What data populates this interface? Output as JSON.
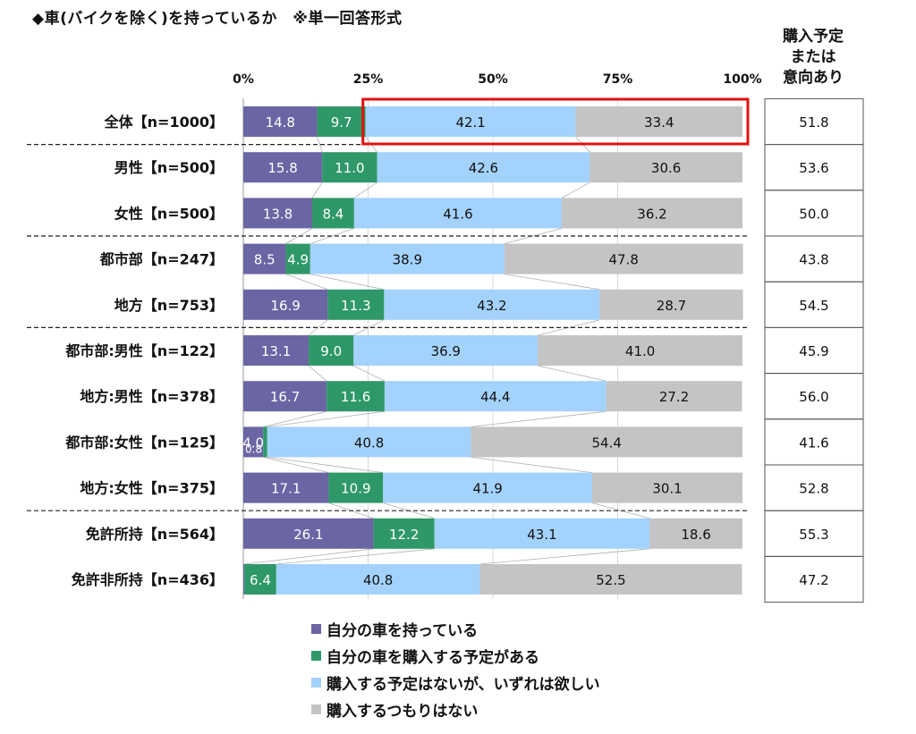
{
  "title": "◆車(バイクを除く)を持っているか　※単一回答形式",
  "side_header": [
    "購入予定",
    "または",
    "意向あり"
  ],
  "colors": {
    "owned": "#6a65a3",
    "plan": "#2f9868",
    "want": "#a3d2fc",
    "none": "#c4c4c4",
    "highlight": "#e01010"
  },
  "legend": [
    {
      "label": "自分の車を持っている",
      "color": "#6a65a3"
    },
    {
      "label": "自分の車を購入する予定がある",
      "color": "#2f9868"
    },
    {
      "label": "購入する予定はないが、いずれは欲しい",
      "color": "#a3d2fc"
    },
    {
      "label": "購入するつもりはない",
      "color": "#c4c4c4"
    }
  ],
  "chart_data": {
    "type": "bar",
    "orientation": "horizontal",
    "stacked": "100%",
    "title": "◆車(バイクを除く)を持っているか　※単一回答形式",
    "x_ticks": [
      "0%",
      "25%",
      "50%",
      "75%",
      "100%"
    ],
    "xlim": [
      0,
      100
    ],
    "categories": [
      "全体【n=1000】",
      "男性【n=500】",
      "女性【n=500】",
      "都市部【n=247】",
      "地方【n=753】",
      "都市部:男性【n=122】",
      "地方:男性【n=378】",
      "都市部:女性【n=125】",
      "地方:女性【n=375】",
      "免許所持【n=564】",
      "免許非所持【n=436】"
    ],
    "series": [
      {
        "name": "自分の車を持っている",
        "values": [
          14.8,
          15.8,
          13.8,
          8.5,
          16.9,
          13.1,
          16.7,
          4.0,
          17.1,
          26.1,
          0.2
        ]
      },
      {
        "name": "自分の車を購入する予定がある",
        "values": [
          9.7,
          11.0,
          8.4,
          4.9,
          11.3,
          9.0,
          11.6,
          0.8,
          10.9,
          12.2,
          6.4
        ]
      },
      {
        "name": "購入する予定はないが、いずれは欲しい",
        "values": [
          42.1,
          42.6,
          41.6,
          38.9,
          43.2,
          36.9,
          44.4,
          40.8,
          41.9,
          43.1,
          40.8
        ]
      },
      {
        "name": "購入するつもりはない",
        "values": [
          33.4,
          30.6,
          36.2,
          47.8,
          28.7,
          41.0,
          27.2,
          54.4,
          30.1,
          18.6,
          52.5
        ]
      }
    ],
    "side_column": {
      "header": "購入予定または意向あり",
      "values": [
        "51.8",
        "53.6",
        "50.0",
        "43.8",
        "54.5",
        "45.9",
        "56.0",
        "41.6",
        "52.8",
        "55.3",
        "47.2"
      ]
    },
    "group_separators_after": [
      0,
      2,
      4,
      8
    ],
    "highlight": {
      "row": 0,
      "series_from": 2,
      "series_to": 3
    },
    "legend_position": "bottom"
  }
}
